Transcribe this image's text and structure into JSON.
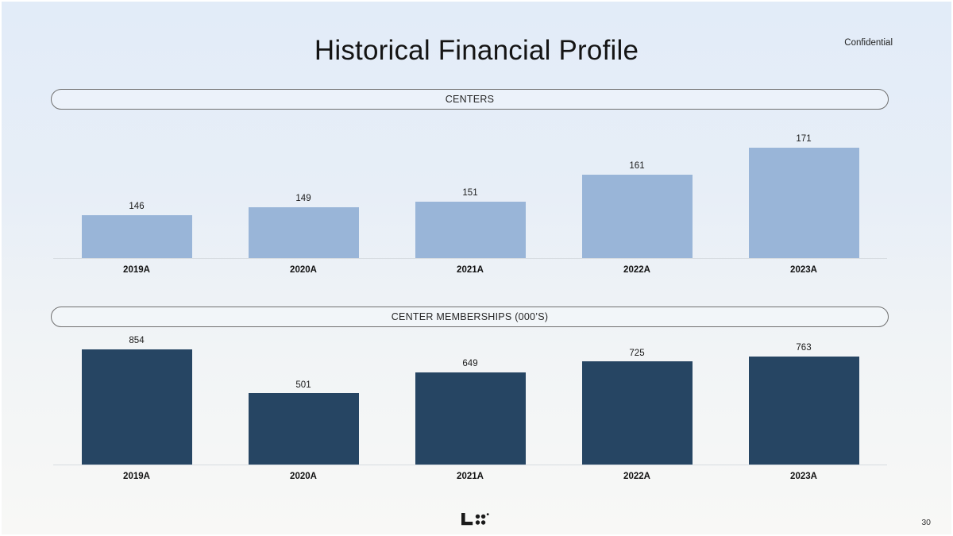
{
  "slide": {
    "title": "Historical Financial Profile",
    "confidential_label": "Confidential",
    "page_number": "30",
    "logo_icon": "lifetime-logo-icon"
  },
  "chart_data": [
    {
      "type": "bar",
      "title": "CENTERS",
      "categories": [
        "2019A",
        "2020A",
        "2021A",
        "2022A",
        "2023A"
      ],
      "values": [
        146,
        149,
        151,
        161,
        171
      ],
      "bar_color": "#99b5d8",
      "value_label_color": "#1a1a1a",
      "ylim": [
        130,
        181
      ],
      "grid": false,
      "legend": "none",
      "xlabel": "",
      "ylabel": ""
    },
    {
      "type": "bar",
      "title": "CENTER MEMBERSHIPS (000’S)",
      "categories": [
        "2019A",
        "2020A",
        "2021A",
        "2022A",
        "2023A"
      ],
      "values": [
        854,
        501,
        649,
        725,
        763
      ],
      "bar_color": "#264563",
      "value_label_color": "#1a1a1a",
      "ylim": [
        0,
        900
      ],
      "grid": false,
      "legend": "none",
      "xlabel": "",
      "ylabel": ""
    }
  ]
}
